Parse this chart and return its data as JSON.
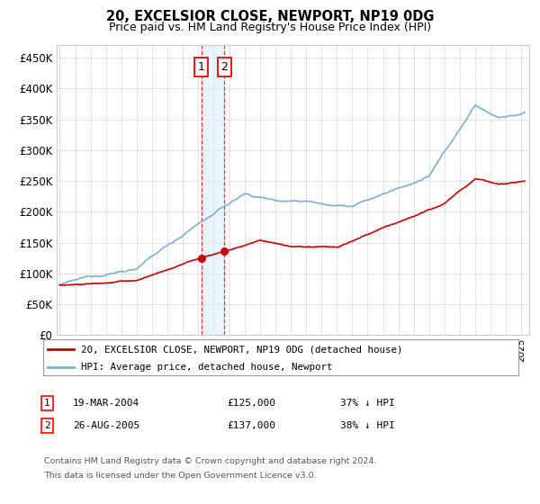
{
  "title": "20, EXCELSIOR CLOSE, NEWPORT, NP19 0DG",
  "subtitle": "Price paid vs. HM Land Registry's House Price Index (HPI)",
  "hpi_label": "HPI: Average price, detached house, Newport",
  "price_label": "20, EXCELSIOR CLOSE, NEWPORT, NP19 0DG (detached house)",
  "hpi_color": "#7bafd4",
  "price_color": "#cc0000",
  "purchase1_date": "19-MAR-2004",
  "purchase1_price": 125000,
  "purchase1_hpi_text": "37% ↓ HPI",
  "purchase2_date": "26-AUG-2005",
  "purchase2_price": 137000,
  "purchase2_hpi_text": "38% ↓ HPI",
  "purchase1_x": 2004.22,
  "purchase2_x": 2005.65,
  "yticks": [
    0,
    50000,
    100000,
    150000,
    200000,
    250000,
    300000,
    350000,
    400000,
    450000
  ],
  "xlim": [
    1994.8,
    2025.5
  ],
  "ylim": [
    0,
    470000
  ],
  "footnote_line1": "Contains HM Land Registry data © Crown copyright and database right 2024.",
  "footnote_line2": "This data is licensed under the Open Government Licence v3.0.",
  "grid_color": "#dddddd",
  "shading_color": "#ddeeff"
}
